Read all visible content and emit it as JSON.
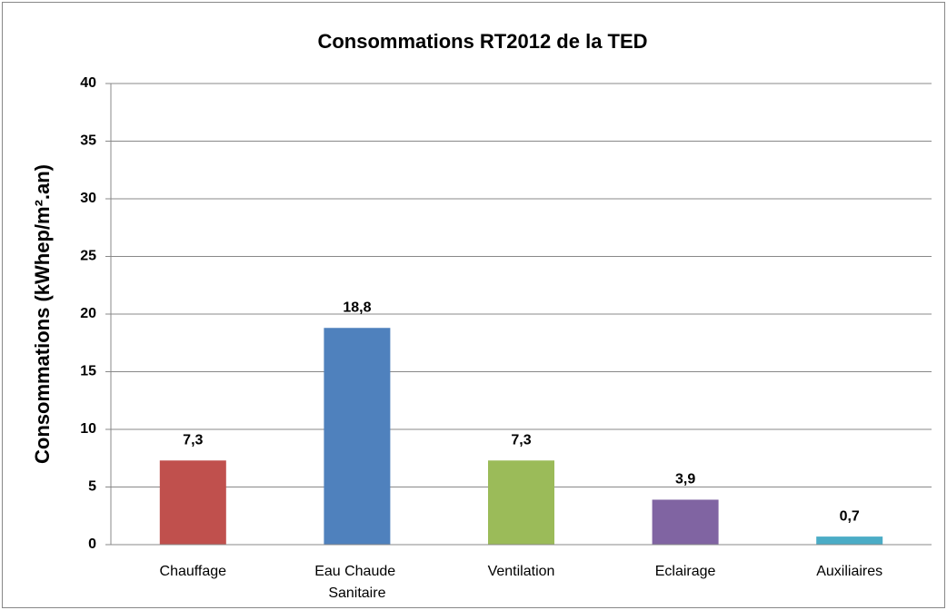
{
  "chart_data": {
    "type": "bar",
    "title": "Consommations RT2012 de la TED",
    "y_label": "Consommations (kWhep/m².an)",
    "categories": [
      "Chauffage",
      "Eau Chaude Sanitaire",
      "Ventilation",
      "Eclairage",
      "Auxiliaires"
    ],
    "values": [
      7.3,
      18.8,
      7.3,
      3.9,
      0.7
    ],
    "value_labels": [
      "7,3",
      "18,8",
      "7,3",
      "3,9",
      "0,7"
    ],
    "colors": [
      "#c0504d",
      "#4f81bd",
      "#9bbb59",
      "#8064a2",
      "#4bacc6"
    ],
    "ylim": [
      0,
      40
    ],
    "yticks": [
      0,
      5,
      10,
      15,
      20,
      25,
      30,
      35,
      40
    ],
    "grid": true
  }
}
